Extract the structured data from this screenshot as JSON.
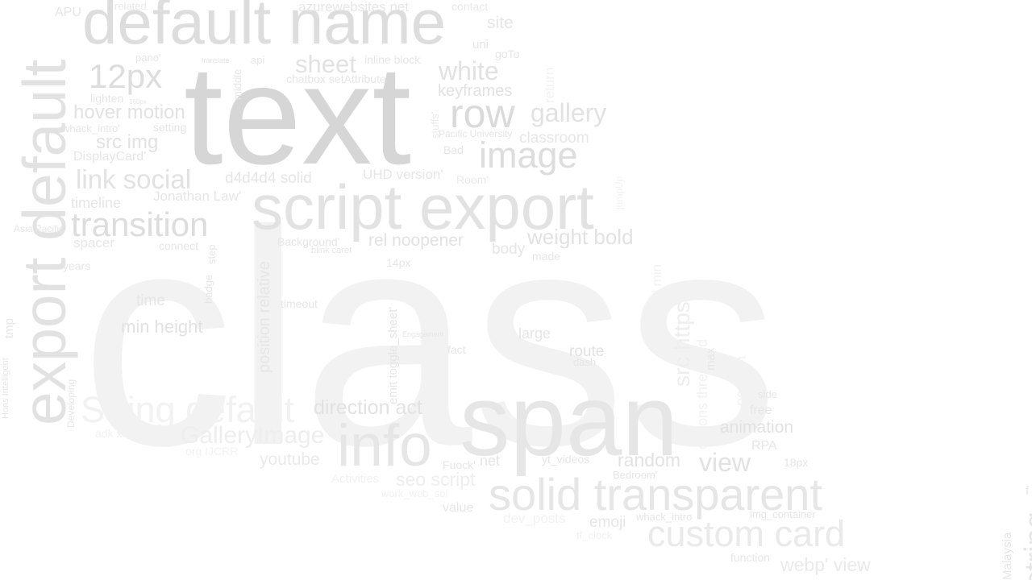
{
  "colors": {
    "background": "#ffffff",
    "shades": [
      "#d6d6d6",
      "#dadada",
      "#dddddd",
      "#e2e2e2",
      "#e6e6e6",
      "#eaeaea",
      "#eeeeee",
      "#f2f2f2"
    ]
  },
  "words": [
    {
      "text": "class"
    },
    {
      "text": "text"
    },
    {
      "text": "span"
    },
    {
      "text": "default name"
    },
    {
      "text": "script export"
    },
    {
      "text": "export default"
    },
    {
      "text": "info"
    },
    {
      "text": "solid transparent"
    },
    {
      "text": "custom card"
    },
    {
      "text": "String default"
    },
    {
      "text": "image"
    },
    {
      "text": "row"
    },
    {
      "text": "transition"
    },
    {
      "text": "12px"
    },
    {
      "text": "view"
    },
    {
      "text": "gallery"
    },
    {
      "text": "white"
    },
    {
      "text": "sheet"
    },
    {
      "text": "link social"
    },
    {
      "text": "GalleryImage"
    },
    {
      "text": "src https"
    },
    {
      "text": "weight bold"
    },
    {
      "text": "hover motion"
    },
    {
      "text": "direction act"
    },
    {
      "text": "random"
    },
    {
      "text": "webp' view"
    },
    {
      "text": "src img"
    },
    {
      "text": "animation"
    },
    {
      "text": "position relative"
    },
    {
      "text": "seo script"
    },
    {
      "text": "min height"
    },
    {
      "text": "rel noopener"
    },
    {
      "text": "keyframes"
    },
    {
      "text": "youtube"
    },
    {
      "text": "classroom"
    },
    {
      "text": "route"
    },
    {
      "text": "site"
    },
    {
      "text": "d4d4d4 solid"
    },
    {
      "text": "emoji"
    },
    {
      "text": "body"
    },
    {
      "text": "time"
    },
    {
      "text": "large"
    },
    {
      "text": "net"
    },
    {
      "text": "timeline"
    },
    {
      "text": "UHD version'"
    },
    {
      "text": "azurewebsites net"
    },
    {
      "text": "spacer"
    },
    {
      "text": "Jonathan Law'"
    },
    {
      "text": "threshold min"
    },
    {
      "text": "options threshold"
    },
    {
      "text": "position"
    },
    {
      "text": "DisplayCard'"
    },
    {
      "text": "free"
    },
    {
      "text": "RPA"
    },
    {
      "text": "dev_posts"
    },
    {
      "text": "value"
    },
    {
      "text": "return"
    },
    {
      "text": "emit toggle_sheet'"
    },
    {
      "text": "APU"
    },
    {
      "text": "tmp"
    },
    {
      "text": "max"
    },
    {
      "text": "inline block"
    },
    {
      "text": "chatbox setAttribute"
    },
    {
      "text": "Activities"
    },
    {
      "text": "fact"
    },
    {
      "text": "uni"
    },
    {
      "text": "years"
    },
    {
      "text": "setting"
    },
    {
      "text": "timeout"
    },
    {
      "text": "14px"
    },
    {
      "text": "lighten"
    },
    {
      "text": "Bad"
    },
    {
      "text": "goTo"
    },
    {
      "text": "Background'"
    },
    {
      "text": "connect"
    },
    {
      "text": "function"
    },
    {
      "text": "adk xfbml"
    },
    {
      "text": "18px"
    },
    {
      "text": "made"
    },
    {
      "text": "yt_videos"
    },
    {
      "text": "Fuock'"
    },
    {
      "text": "whack_intro'"
    },
    {
      "text": "whack_intro"
    },
    {
      "text": "img_container"
    },
    {
      "text": "dash"
    },
    {
      "text": "side"
    },
    {
      "text": "Room'"
    },
    {
      "text": "Pacific University"
    },
    {
      "text": "stuffs'"
    },
    {
      "text": "org IJCRR"
    },
    {
      "text": "contact"
    },
    {
      "text": "api"
    },
    {
      "text": "badge"
    },
    {
      "text": "step"
    },
    {
      "text": "tf_clock"
    },
    {
      "text": "related"
    },
    {
      "text": "pano'"
    },
    {
      "text": "middle"
    },
    {
      "text": "Developing"
    },
    {
      "text": "jumpUp"
    },
    {
      "text": "Bedroom'"
    },
    {
      "text": "work_web_sol"
    },
    {
      "text": "Asia Pacific"
    },
    {
      "text": "blink caret"
    },
    {
      "text": "Hons Intelligent"
    },
    {
      "text": "translate"
    },
    {
      "text": "Malaysia"
    },
    {
      "text": "160px"
    },
    {
      "text": "Engagement"
    },
    {
      "text": "f"
    },
    {
      "text": "string"
    }
  ]
}
